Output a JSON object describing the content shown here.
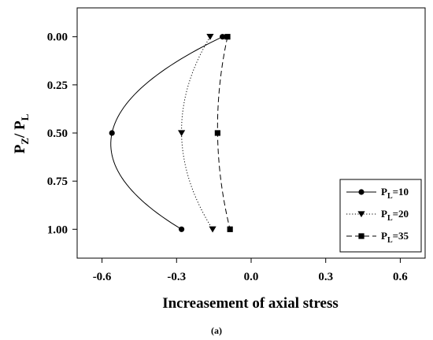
{
  "chart_data": {
    "type": "line",
    "xlabel": "Increasement of axial stress",
    "ylabel": {
      "main": "P",
      "sub1": "Z",
      "sep": "/ ",
      "main2": "P",
      "sub2": "L"
    },
    "caption": "(a)",
    "xlim": [
      -0.7,
      0.7
    ],
    "ylim": [
      -0.15,
      1.15
    ],
    "y_inverted": true,
    "x_ticks": [
      "-0.6",
      "-0.3",
      "0.0",
      "0.3",
      "0.6"
    ],
    "x_tick_values": [
      -0.6,
      -0.3,
      0.0,
      0.3,
      0.6
    ],
    "y_ticks": [
      "0.00",
      "0.25",
      "0.50",
      "0.75",
      "1.00"
    ],
    "y_tick_values": [
      0.0,
      0.25,
      0.5,
      0.75,
      1.0
    ],
    "grid": false,
    "legend_position": "bottom-right",
    "series": [
      {
        "name": "P_L=10",
        "label_main": "P",
        "label_sub": "L",
        "label_value": "=10",
        "marker": "circle",
        "line_style": "solid",
        "color": "#000000",
        "y": [
          0.0,
          0.5,
          1.0
        ],
        "x": [
          -0.115,
          -0.56,
          -0.28
        ]
      },
      {
        "name": "P_L=20",
        "label_main": "P",
        "label_sub": "L",
        "label_value": "=20",
        "marker": "triangle-down",
        "line_style": "dotted",
        "color": "#000000",
        "y": [
          0.0,
          0.5,
          1.0
        ],
        "x": [
          -0.165,
          -0.28,
          -0.155
        ]
      },
      {
        "name": "P_L=35",
        "label_main": "P",
        "label_sub": "L",
        "label_value": "=35",
        "marker": "square",
        "line_style": "dashed",
        "color": "#000000",
        "y": [
          0.0,
          0.5,
          1.0
        ],
        "x": [
          -0.095,
          -0.135,
          -0.085
        ]
      }
    ]
  }
}
